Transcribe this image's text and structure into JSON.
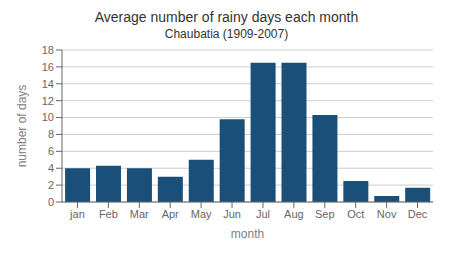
{
  "chart_data": {
    "type": "bar",
    "title": "Average number of rainy days each month",
    "subtitle": "Chaubatia (1909-2007)",
    "xlabel": "month",
    "ylabel": "number of days",
    "categories": [
      "jan",
      "Feb",
      "Mar",
      "Apr",
      "May",
      "Jun",
      "Jul",
      "Aug",
      "Sep",
      "Oct",
      "Nov",
      "Dec"
    ],
    "values": [
      4,
      4.3,
      4,
      3,
      5,
      9.8,
      16.5,
      16.5,
      10.3,
      2.5,
      0.7,
      1.7
    ],
    "color": "#1a4f7a",
    "ylim": [
      0,
      18
    ],
    "yticks": [
      0,
      2,
      4,
      6,
      8,
      10,
      12,
      14,
      16,
      18
    ],
    "grid": true
  }
}
